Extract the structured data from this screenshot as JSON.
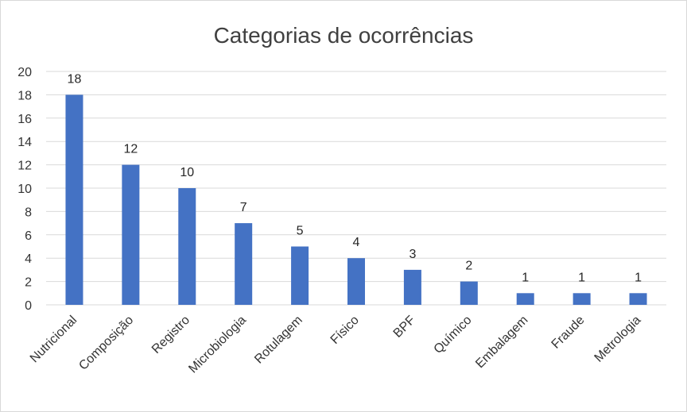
{
  "chart_data": {
    "type": "bar",
    "title": "Categorias de ocorrências",
    "categories": [
      "Nutricional",
      "Composição",
      "Registro",
      "Microbiologia",
      "Rotulagem",
      "Físico",
      "BPF",
      "Químico",
      "Embalagem",
      "Fraude",
      "Metrologia"
    ],
    "values": [
      18,
      12,
      10,
      7,
      5,
      4,
      3,
      2,
      1,
      1,
      1
    ],
    "ylim": [
      0,
      20
    ],
    "yticks": [
      "0",
      "2",
      "4",
      "6",
      "8",
      "10",
      "12",
      "14",
      "16",
      "18",
      "20"
    ],
    "grid": true,
    "legend": "none",
    "bar_color": "#4472c4",
    "data_labels": true
  }
}
